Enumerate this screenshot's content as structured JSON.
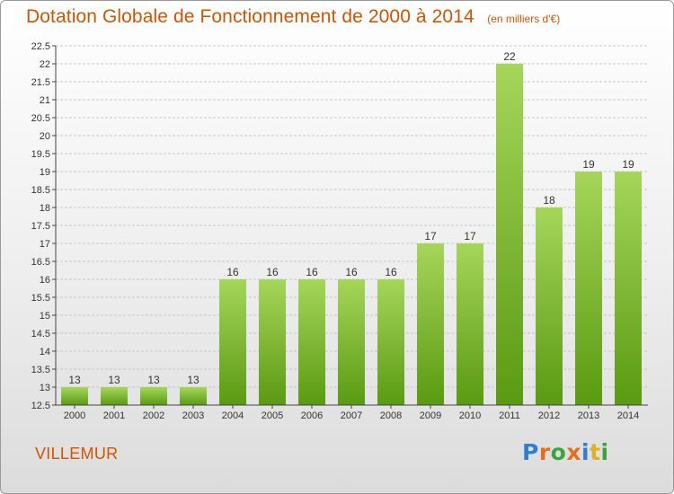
{
  "header": {
    "title": "Dotation Globale de Fonctionnement de 2000 à 2014",
    "subtitle": "(en milliers d'€)"
  },
  "footer": {
    "commune": "VILLEMUR",
    "logo_text": "Proxiti"
  },
  "colors": {
    "title": "#d35400",
    "bar_light": "#a5d65a",
    "bar_dark": "#5a9a12",
    "grid": "#c8c8c8",
    "axis_text": "#333333"
  },
  "chart_data": {
    "type": "bar",
    "categories": [
      "2000",
      "2001",
      "2002",
      "2003",
      "2004",
      "2005",
      "2006",
      "2007",
      "2008",
      "2009",
      "2010",
      "2011",
      "2012",
      "2013",
      "2014"
    ],
    "values": [
      13,
      13,
      13,
      13,
      16,
      16,
      16,
      16,
      16,
      17,
      17,
      22,
      18,
      19,
      19
    ],
    "data_labels": [
      "13",
      "13",
      "13",
      "13",
      "16",
      "16",
      "16",
      "16",
      "16",
      "17",
      "17",
      "22",
      "18",
      "19",
      "19"
    ],
    "title": "Dotation Globale de Fonctionnement de 2000 à 2014",
    "subtitle": "(en milliers d'€)",
    "xlabel": "",
    "ylabel": "",
    "ylim": [
      12.5,
      22.5
    ],
    "y_ticks": [
      "12.5",
      "13",
      "13.5",
      "14",
      "14.5",
      "15",
      "15.5",
      "16",
      "16.5",
      "17",
      "17.5",
      "18",
      "18.5",
      "19",
      "19.5",
      "20",
      "20.5",
      "21",
      "21.5",
      "22",
      "22.5"
    ],
    "grid": "horizontal"
  }
}
